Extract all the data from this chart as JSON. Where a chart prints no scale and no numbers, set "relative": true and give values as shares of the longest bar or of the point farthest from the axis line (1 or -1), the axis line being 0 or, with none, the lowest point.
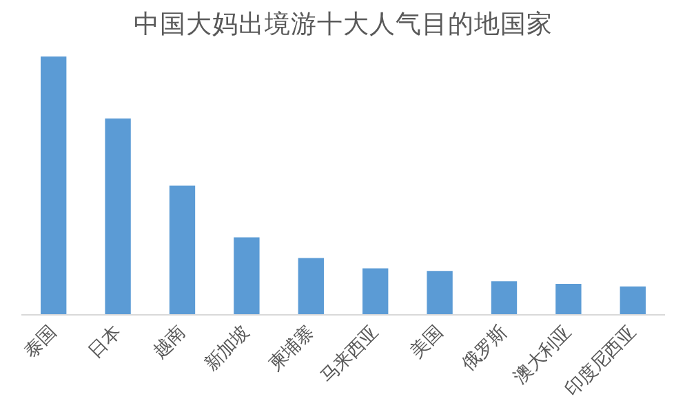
{
  "chart_data": {
    "type": "bar",
    "title": "中国大妈出境游十大人气目的地国家",
    "categories": [
      "泰国",
      "日本",
      "越南",
      "新加坡",
      "柬埔寨",
      "马来西亚",
      "美国",
      "俄罗斯",
      "澳大利亚",
      "印度尼西亚"
    ],
    "values": [
      1,
      0.76,
      0.5,
      0.3,
      0.22,
      0.18,
      0.17,
      0.13,
      0.12,
      0.11
    ],
    "color": "#5b9bd5",
    "relative": true,
    "grid": false
  }
}
